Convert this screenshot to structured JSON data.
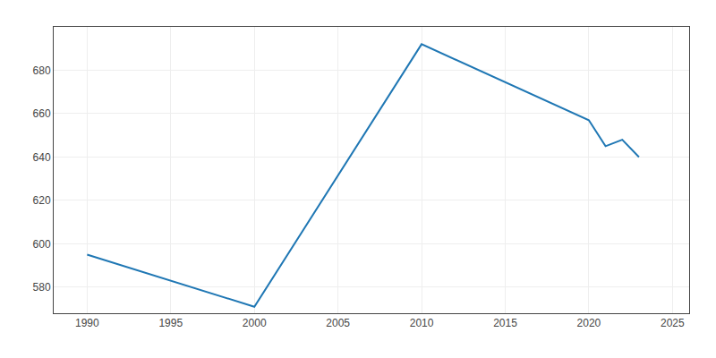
{
  "chart_data": {
    "type": "line",
    "x": [
      1990,
      2000,
      2010,
      2020,
      2021,
      2022,
      2023
    ],
    "values": [
      595,
      571,
      692,
      657,
      645,
      648,
      640
    ],
    "xlim": [
      1988,
      2026
    ],
    "ylim": [
      568,
      700
    ],
    "xticks": [
      1990,
      1995,
      2000,
      2005,
      2010,
      2015,
      2020,
      2025
    ],
    "yticks": [
      580,
      600,
      620,
      640,
      660,
      680
    ],
    "grid": true
  }
}
